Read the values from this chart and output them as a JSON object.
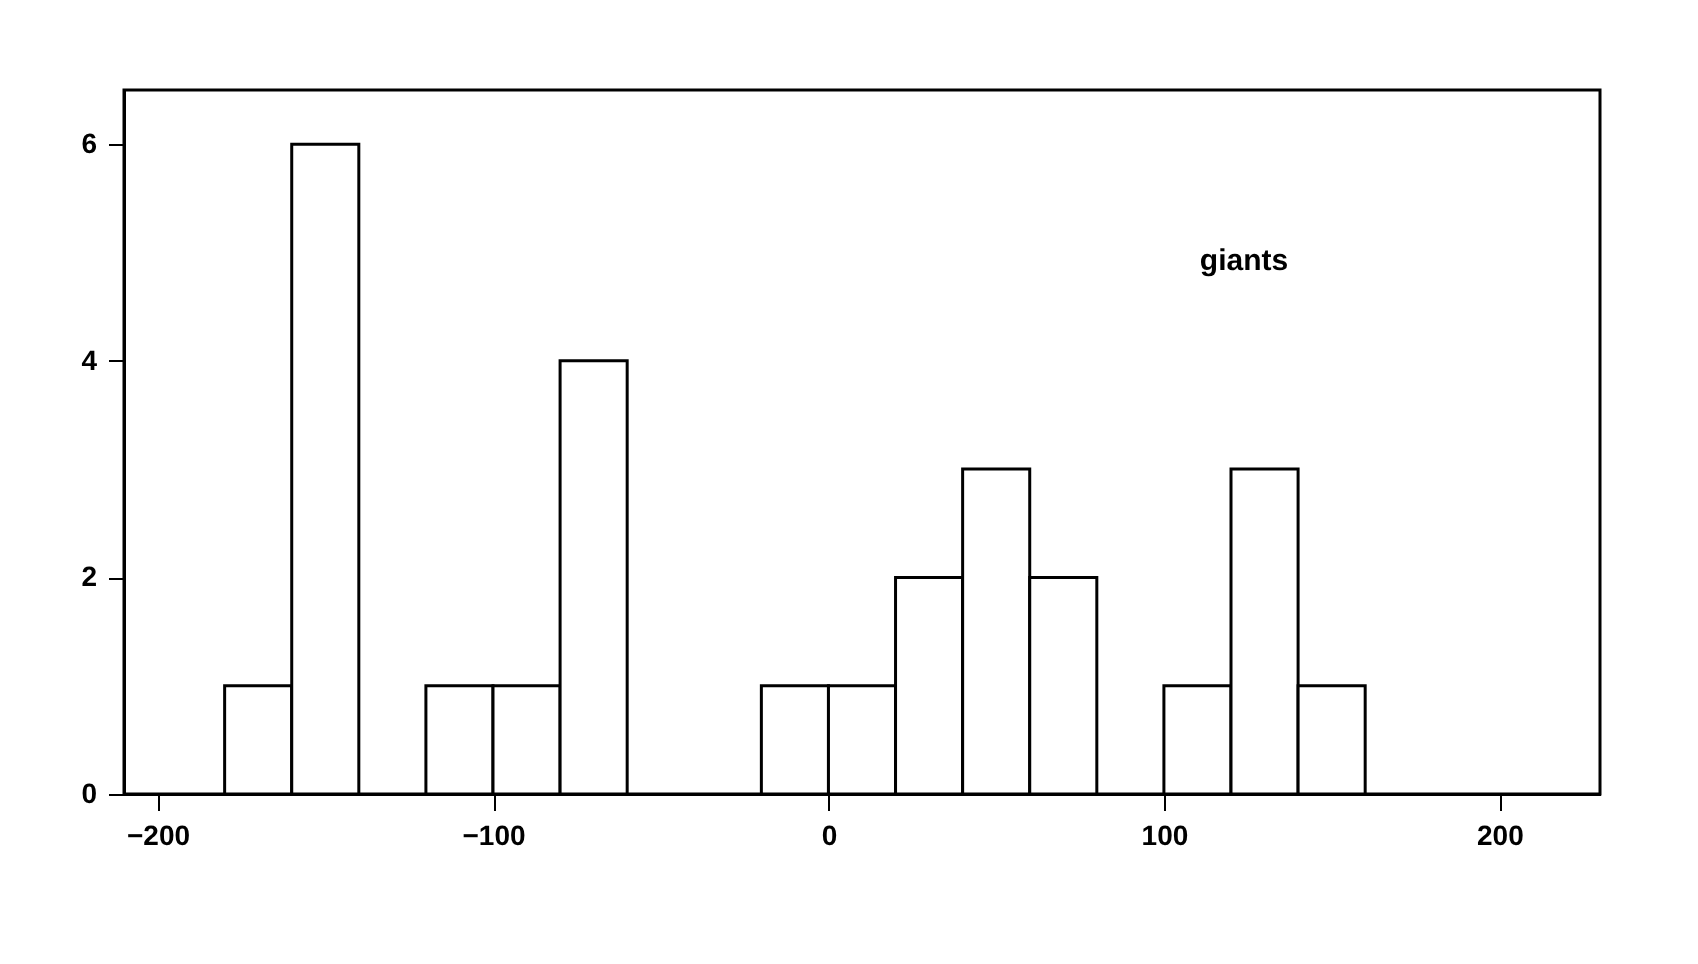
{
  "chart_data": {
    "type": "histogram",
    "bins": [
      -180,
      -160,
      -140,
      -120,
      -100,
      -80,
      -60,
      -40,
      -20,
      0,
      20,
      40,
      60,
      80,
      100,
      120,
      140,
      160
    ],
    "values": [
      1,
      6,
      0,
      1,
      1,
      4,
      0,
      0,
      1,
      1,
      2,
      3,
      2,
      0,
      1,
      3,
      1
    ],
    "color": "#ffffff",
    "xlim": [
      -210,
      230
    ],
    "xticks": [
      -200,
      -100,
      0,
      100,
      200
    ],
    "ylim": [
      0,
      6.5
    ],
    "yticks": [
      0,
      2,
      4,
      6
    ],
    "annotations": [
      "giants"
    ],
    "grid": false
  }
}
